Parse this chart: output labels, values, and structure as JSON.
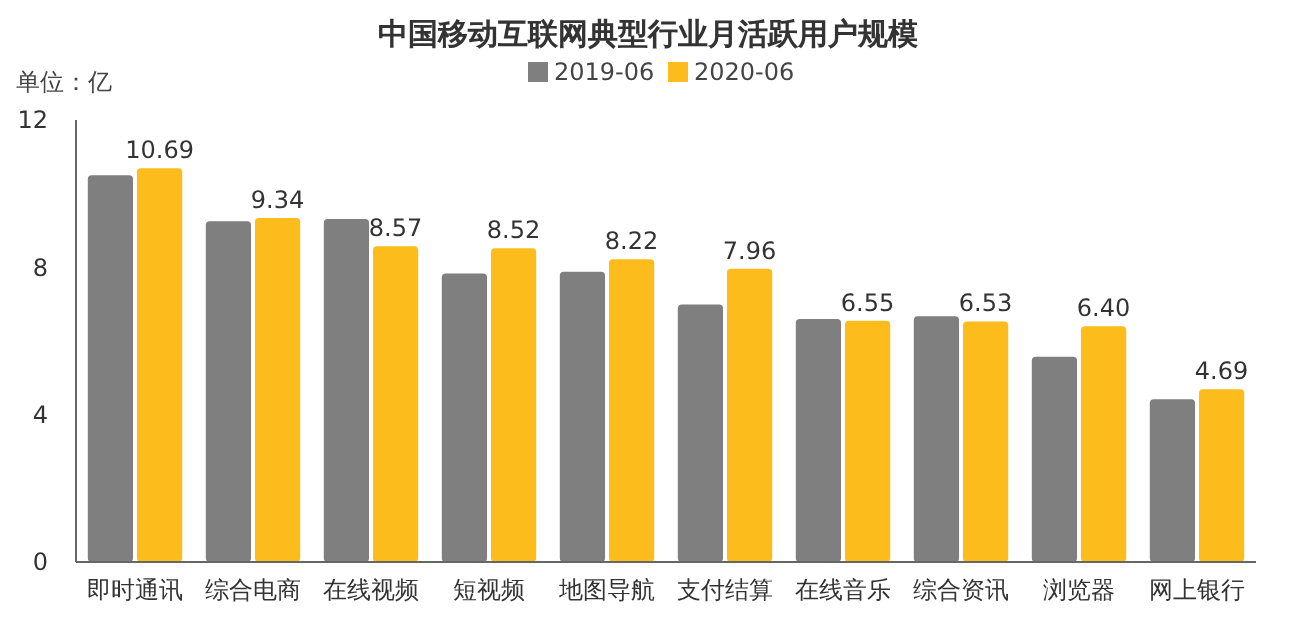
{
  "chart_data": {
    "type": "bar",
    "title": "中国移动互联网典型行业月活跃用户规模",
    "annotations": [
      "单位：亿"
    ],
    "categories": [
      "即时通讯",
      "综合电商",
      "在线视频",
      "短视频",
      "地图导航",
      "支付结算",
      "在线音乐",
      "综合资讯",
      "浏览器",
      "网上银行"
    ],
    "series": [
      {
        "name": "2019-06",
        "color": "#7f7f7f",
        "values": [
          10.5,
          9.25,
          9.31,
          7.83,
          7.88,
          6.99,
          6.6,
          6.67,
          5.57,
          4.42
        ]
      },
      {
        "name": "2020-06",
        "color": "#fbbc1c",
        "values": [
          10.69,
          9.34,
          8.57,
          8.52,
          8.22,
          7.96,
          6.55,
          6.53,
          6.4,
          4.69
        ],
        "value_labels": [
          "10.69",
          "9.34",
          "8.57",
          "8.52",
          "8.22",
          "7.96",
          "6.55",
          "6.53",
          "6.40",
          "4.69"
        ]
      }
    ],
    "ylim": [
      0,
      12
    ],
    "yticks": [
      0,
      4,
      8,
      12
    ],
    "grid": false,
    "legend": "top"
  }
}
